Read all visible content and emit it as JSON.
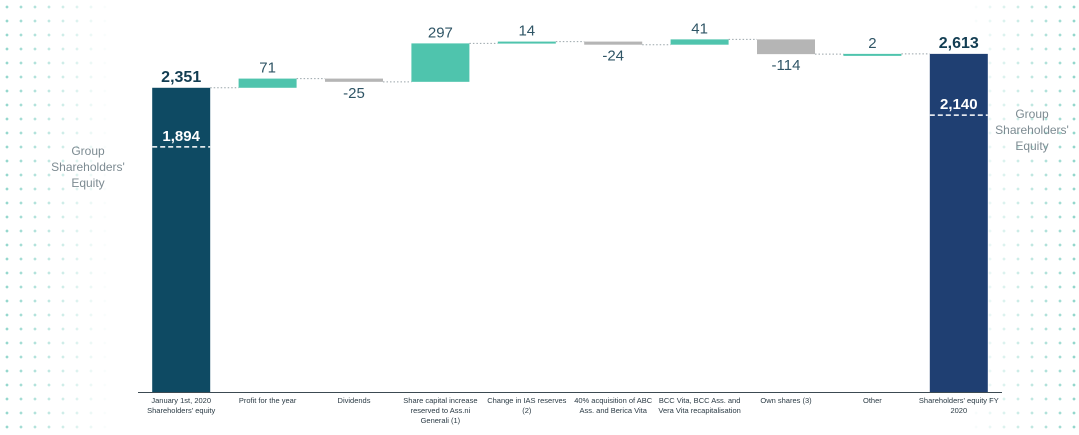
{
  "chart_data": {
    "type": "bar",
    "subtype": "waterfall",
    "categories": [
      "January 1st, 2020 Shareholders' equity",
      "Profit for the year",
      "Dividends",
      "Share capital increase reserved to Ass.ni Generali (1)",
      "Change in IAS reserves (2)",
      "40% acquisition of ABC Ass. and Berica Vita",
      "BCC Vita, BCC Ass. and Vera Vita recapitalisation",
      "Own shares (3)",
      "Other",
      "Shareholders' equity FY 2020"
    ],
    "values": [
      2351,
      71,
      -25,
      297,
      14,
      -24,
      41,
      -114,
      2,
      2613
    ],
    "value_labels": [
      "2,351",
      "71",
      "-25",
      "297",
      "14",
      "-24",
      "41",
      "-114",
      "2",
      "2,613"
    ],
    "group_values": [
      {
        "category": "January 1st, 2020 Shareholders' equity",
        "value": 1894,
        "label": "1,894"
      },
      {
        "category": "Shareholders' equity FY 2020",
        "value": 2140,
        "label": "2,140"
      }
    ],
    "group_note": "Group Shareholders' Equity",
    "colors": {
      "start_total": "#0e4a63",
      "end_total": "#1f3f72",
      "increase": "#4fc4ad",
      "decrease": "#b5b5b5",
      "connector": "#9aa5aa"
    },
    "grid": false,
    "legend": "none"
  }
}
